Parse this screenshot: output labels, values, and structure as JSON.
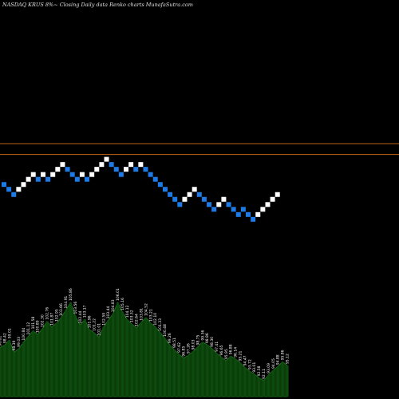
{
  "chart_data": {
    "type": "bar",
    "title": "NASDAQ KRUS 8%~  Closing Daily data  Renko  charts MunafaSutra.com",
    "grid": false,
    "colors": {
      "background": "#000000",
      "up_brick": "#ffffff",
      "down_brick": "#1e7be6",
      "reference_line": "#b8651a",
      "volume_area": "#0a3d0a",
      "volume_edge": "#1f7a1f"
    },
    "reference_lines": [
      110.0,
      107.5
    ],
    "bricks": [
      {
        "value": 100.6,
        "dir": "down"
      },
      {
        "value": 99.5,
        "dir": "down"
      },
      {
        "value": 98.3,
        "dir": "down"
      },
      {
        "value": 99.5,
        "dir": "up"
      },
      {
        "value": 100.6,
        "dir": "up"
      },
      {
        "value": 101.8,
        "dir": "up"
      },
      {
        "value": 102.9,
        "dir": "up"
      },
      {
        "value": 101.8,
        "dir": "down"
      },
      {
        "value": 102.9,
        "dir": "up"
      },
      {
        "value": 101.8,
        "dir": "down"
      },
      {
        "value": 102.9,
        "dir": "up"
      },
      {
        "value": 104.1,
        "dir": "up"
      },
      {
        "value": 105.2,
        "dir": "up"
      },
      {
        "value": 104.1,
        "dir": "down"
      },
      {
        "value": 102.9,
        "dir": "down"
      },
      {
        "value": 101.8,
        "dir": "down"
      },
      {
        "value": 102.9,
        "dir": "up"
      },
      {
        "value": 101.8,
        "dir": "down"
      },
      {
        "value": 102.9,
        "dir": "up"
      },
      {
        "value": 104.1,
        "dir": "up"
      },
      {
        "value": 105.2,
        "dir": "up"
      },
      {
        "value": 106.4,
        "dir": "up"
      },
      {
        "value": 105.2,
        "dir": "down"
      },
      {
        "value": 104.1,
        "dir": "down"
      },
      {
        "value": 102.9,
        "dir": "down"
      },
      {
        "value": 104.1,
        "dir": "up"
      },
      {
        "value": 105.2,
        "dir": "up"
      },
      {
        "value": 104.1,
        "dir": "down"
      },
      {
        "value": 105.2,
        "dir": "up"
      },
      {
        "value": 104.1,
        "dir": "down"
      },
      {
        "value": 102.9,
        "dir": "down"
      },
      {
        "value": 101.8,
        "dir": "down"
      },
      {
        "value": 100.6,
        "dir": "down"
      },
      {
        "value": 99.5,
        "dir": "down"
      },
      {
        "value": 98.3,
        "dir": "down"
      },
      {
        "value": 97.2,
        "dir": "down"
      },
      {
        "value": 96.0,
        "dir": "down"
      },
      {
        "value": 97.2,
        "dir": "up"
      },
      {
        "value": 98.3,
        "dir": "up"
      },
      {
        "value": 99.5,
        "dir": "up"
      },
      {
        "value": 98.3,
        "dir": "down"
      },
      {
        "value": 97.2,
        "dir": "down"
      },
      {
        "value": 96.0,
        "dir": "down"
      },
      {
        "value": 94.9,
        "dir": "down"
      },
      {
        "value": 96.0,
        "dir": "up"
      },
      {
        "value": 97.2,
        "dir": "up"
      },
      {
        "value": 96.0,
        "dir": "down"
      },
      {
        "value": 94.9,
        "dir": "down"
      },
      {
        "value": 93.7,
        "dir": "down"
      },
      {
        "value": 94.9,
        "dir": "down"
      },
      {
        "value": 93.7,
        "dir": "down"
      },
      {
        "value": 92.6,
        "dir": "down"
      },
      {
        "value": 93.7,
        "dir": "up"
      },
      {
        "value": 94.9,
        "dir": "up"
      },
      {
        "value": 96.0,
        "dir": "up"
      },
      {
        "value": 97.2,
        "dir": "up"
      },
      {
        "value": 98.3,
        "dir": "up"
      }
    ],
    "volume": [
      {
        "v": 52,
        "label": "96.81"
      },
      {
        "v": 55,
        "label": "98.42"
      },
      {
        "v": 60,
        "label": "99.01"
      },
      {
        "v": 47,
        "label": "98.39"
      },
      {
        "v": 51,
        "label": "99.03"
      },
      {
        "v": 58,
        "label": "100.84"
      },
      {
        "v": 64,
        "label": "101.12"
      },
      {
        "v": 70,
        "label": "101.58"
      },
      {
        "v": 66,
        "label": "100.89"
      },
      {
        "v": 72,
        "label": "102.30"
      },
      {
        "v": 80,
        "label": "102.76"
      },
      {
        "v": 74,
        "label": "101.87"
      },
      {
        "v": 78,
        "label": "102.95"
      },
      {
        "v": 84,
        "label": "103.66"
      },
      {
        "v": 92,
        "label": "104.91"
      },
      {
        "v": 100,
        "label": "105.86"
      },
      {
        "v": 86,
        "label": "103.56"
      },
      {
        "v": 76,
        "label": "102.44"
      },
      {
        "v": 82,
        "label": "103.17"
      },
      {
        "v": 71,
        "label": "101.96"
      },
      {
        "v": 68,
        "label": "101.22"
      },
      {
        "v": 63,
        "label": "101.01"
      },
      {
        "v": 74,
        "label": "102.59"
      },
      {
        "v": 81,
        "label": "103.44"
      },
      {
        "v": 88,
        "label": "104.83"
      },
      {
        "v": 100,
        "label": "106.01"
      },
      {
        "v": 90,
        "label": "105.16"
      },
      {
        "v": 82,
        "label": "104.12"
      },
      {
        "v": 77,
        "label": "103.32"
      },
      {
        "v": 73,
        "label": "102.64"
      },
      {
        "v": 79,
        "label": "103.81"
      },
      {
        "v": 84,
        "label": "104.52"
      },
      {
        "v": 78,
        "label": "103.21"
      },
      {
        "v": 74,
        "label": "102.10"
      },
      {
        "v": 68,
        "label": "101.33"
      },
      {
        "v": 62,
        "label": "100.48"
      },
      {
        "v": 55,
        "label": "99.26"
      },
      {
        "v": 50,
        "label": "98.51"
      },
      {
        "v": 45,
        "label": "97.62"
      },
      {
        "v": 41,
        "label": "96.85"
      },
      {
        "v": 44,
        "label": "97.26"
      },
      {
        "v": 48,
        "label": "98.03"
      },
      {
        "v": 53,
        "label": "98.75"
      },
      {
        "v": 58,
        "label": "99.36"
      },
      {
        "v": 55,
        "label": "98.86"
      },
      {
        "v": 51,
        "label": "98.30"
      },
      {
        "v": 46,
        "label": "97.41"
      },
      {
        "v": 42,
        "label": "96.65"
      },
      {
        "v": 38,
        "label": "95.95"
      },
      {
        "v": 43,
        "label": "96.88"
      },
      {
        "v": 40,
        "label": "96.14"
      },
      {
        "v": 36,
        "label": "95.21"
      },
      {
        "v": 31,
        "label": "94.47"
      },
      {
        "v": 27,
        "label": "93.72"
      },
      {
        "v": 24,
        "label": "93.01"
      },
      {
        "v": 20,
        "label": "92.58"
      },
      {
        "v": 17,
        "label": "92.11"
      },
      {
        "v": 23,
        "label": "93.09"
      },
      {
        "v": 28,
        "label": "94.05"
      },
      {
        "v": 32,
        "label": "94.88"
      },
      {
        "v": 37,
        "label": "95.86"
      },
      {
        "v": 33,
        "label": "95.12"
      }
    ]
  }
}
